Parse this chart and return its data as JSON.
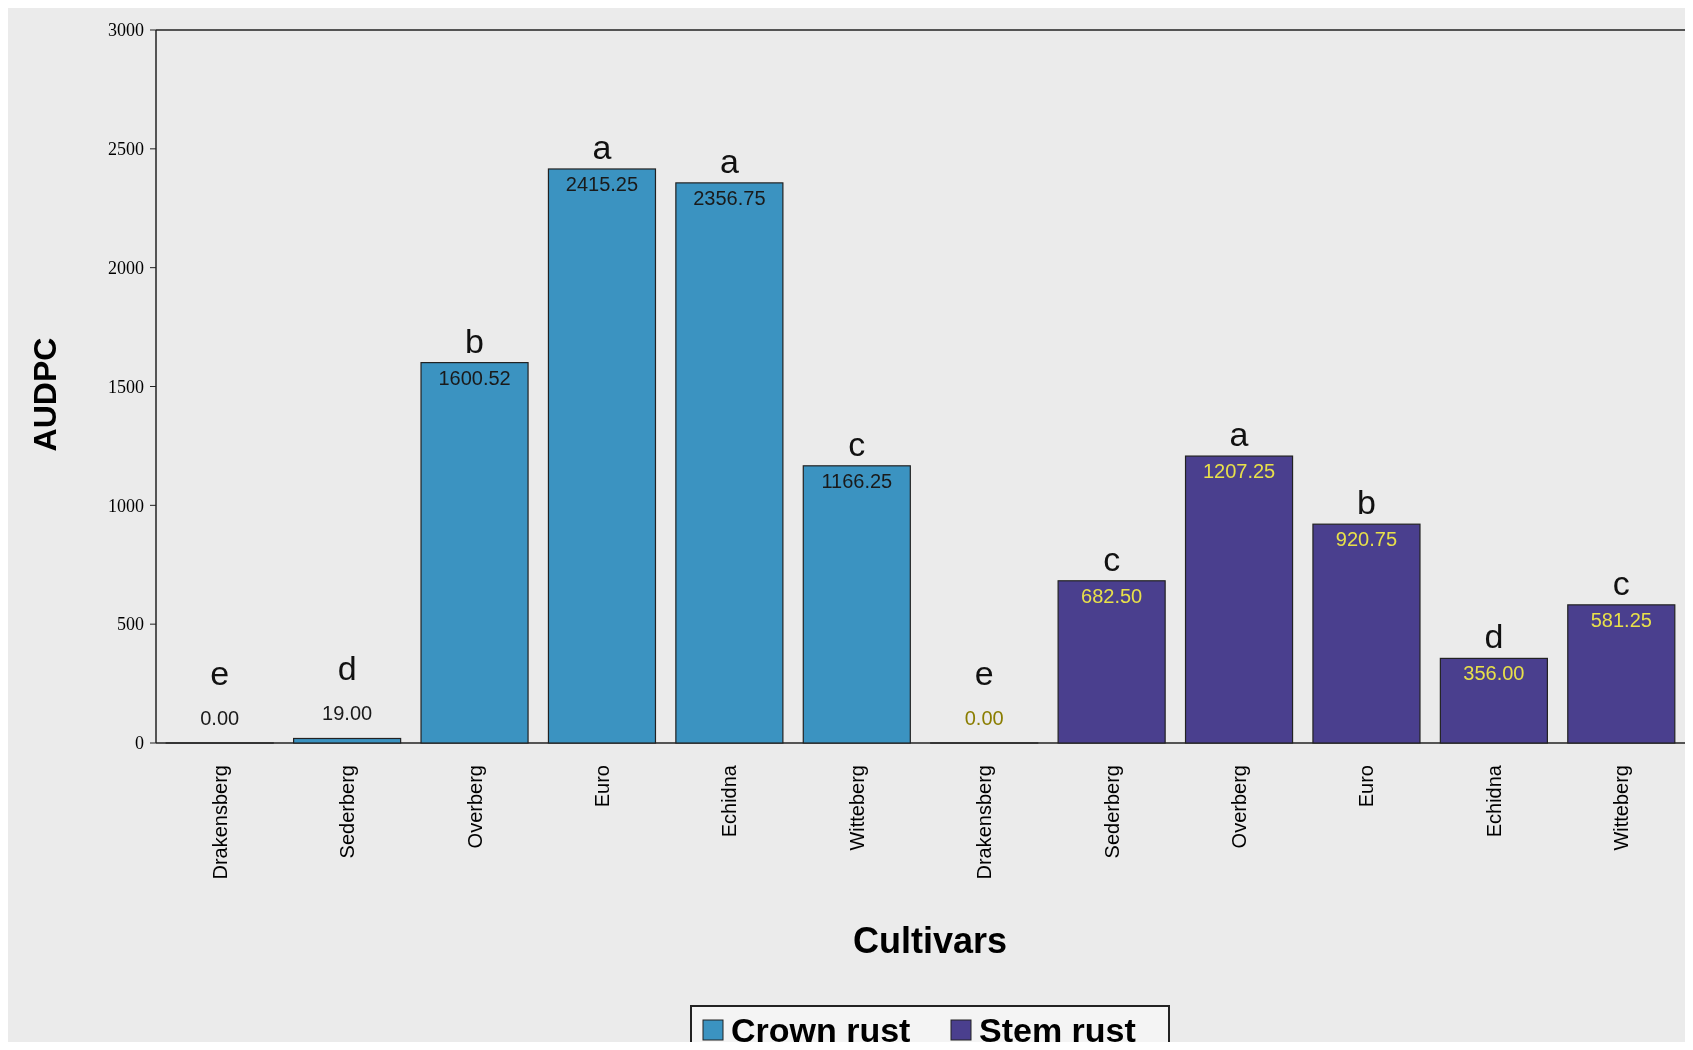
{
  "chart_data": {
    "type": "bar",
    "xlabel": "Cultivars",
    "ylabel": "AUDPC",
    "categories": [
      "Drakensberg",
      "Sederberg",
      "Overberg",
      "Euro",
      "Echidna",
      "Witteberg",
      "Drakensberg",
      "Sederberg",
      "Overberg",
      "Euro",
      "Echidna",
      "Witteberg"
    ],
    "series": [
      {
        "name": "Crown rust",
        "color": "#3b93c1",
        "values": [
          0,
          19,
          1600.52,
          2415.25,
          2356.75,
          1166.25,
          null,
          null,
          null,
          null,
          null,
          null
        ],
        "value_labels": [
          "0.00",
          "19.00",
          "1600.52",
          "2415.25",
          "2356.75",
          "1166.25",
          null,
          null,
          null,
          null,
          null,
          null
        ]
      },
      {
        "name": "Stem rust",
        "color": "#4a3f8e",
        "values": [
          null,
          null,
          null,
          null,
          null,
          null,
          0,
          682.5,
          1207.25,
          920.75,
          356,
          581.25
        ],
        "value_labels": [
          null,
          null,
          null,
          null,
          null,
          null,
          "0.00",
          "682.50",
          "1207.25",
          "920.75",
          "356.00",
          "581.25"
        ]
      }
    ],
    "annotations": [
      "e",
      "d",
      "b",
      "a",
      "a",
      "c",
      "e",
      "c",
      "a",
      "b",
      "d",
      "c"
    ],
    "ylim": [
      0,
      3000
    ],
    "yticks": [
      0,
      500,
      1000,
      1500,
      2000,
      2500,
      3000
    ],
    "grid": false,
    "legend": "bottom"
  }
}
